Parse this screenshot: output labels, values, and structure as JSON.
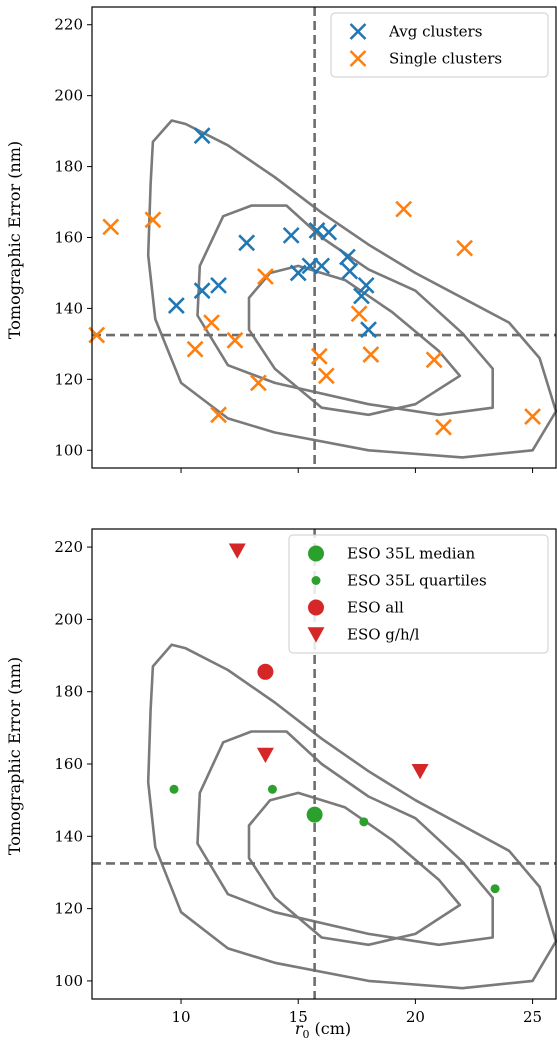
{
  "colors": {
    "avg": "#1f77b4",
    "single": "#ff7f0e",
    "eso_green": "#2ca02c",
    "eso_red": "#d62728",
    "contour": "#7a7a7a",
    "reference": "#6e6e6e"
  },
  "chart_data": [
    {
      "type": "scatter",
      "xlabel": "",
      "ylabel": "Tomographic Error (nm)",
      "xlim": [
        6.2,
        26.0
      ],
      "ylim": [
        95,
        225
      ],
      "yticks": [
        "100",
        "120",
        "140",
        "160",
        "180",
        "200",
        "220"
      ],
      "xticks": [],
      "reference_lines": {
        "x": 15.7,
        "y": 132.5,
        "style": "dashed"
      },
      "legend": {
        "placement": "top-right",
        "entries": [
          {
            "label": "Avg clusters",
            "marker": "x",
            "color": "#1f77b4"
          },
          {
            "label": "Single clusters",
            "marker": "x",
            "color": "#ff7f0e"
          }
        ]
      },
      "series": [
        {
          "name": "Avg clusters",
          "marker": "x",
          "color": "#1f77b4",
          "points": [
            {
              "x": 10.9,
              "y": 188.7
            },
            {
              "x": 12.8,
              "y": 158.5
            },
            {
              "x": 14.7,
              "y": 160.6
            },
            {
              "x": 15.8,
              "y": 162.0
            },
            {
              "x": 16.3,
              "y": 161.5
            },
            {
              "x": 16.0,
              "y": 152.0
            },
            {
              "x": 15.5,
              "y": 152.0
            },
            {
              "x": 15.0,
              "y": 150.0
            },
            {
              "x": 17.1,
              "y": 154.5
            },
            {
              "x": 17.2,
              "y": 150.5
            },
            {
              "x": 17.9,
              "y": 146.5
            },
            {
              "x": 17.7,
              "y": 143.5
            },
            {
              "x": 18.0,
              "y": 134.0
            },
            {
              "x": 11.6,
              "y": 146.5
            },
            {
              "x": 10.9,
              "y": 145.0
            },
            {
              "x": 9.8,
              "y": 140.8
            }
          ]
        },
        {
          "name": "Single clusters",
          "marker": "x",
          "color": "#ff7f0e",
          "points": [
            {
              "x": 7.0,
              "y": 163.0
            },
            {
              "x": 8.8,
              "y": 165.0
            },
            {
              "x": 6.4,
              "y": 132.5
            },
            {
              "x": 11.3,
              "y": 136.0
            },
            {
              "x": 10.6,
              "y": 128.5
            },
            {
              "x": 12.3,
              "y": 131.0
            },
            {
              "x": 13.6,
              "y": 149.0
            },
            {
              "x": 13.3,
              "y": 119.0
            },
            {
              "x": 11.6,
              "y": 110.0
            },
            {
              "x": 15.9,
              "y": 126.5
            },
            {
              "x": 16.2,
              "y": 121.0
            },
            {
              "x": 17.6,
              "y": 138.5
            },
            {
              "x": 18.1,
              "y": 127.0
            },
            {
              "x": 19.5,
              "y": 168.0
            },
            {
              "x": 20.8,
              "y": 125.5
            },
            {
              "x": 21.2,
              "y": 106.5
            },
            {
              "x": 22.1,
              "y": 157.0
            },
            {
              "x": 25.0,
              "y": 109.5
            }
          ]
        }
      ],
      "contours": [
        [
          [
            8.8,
            187
          ],
          [
            9.6,
            193
          ],
          [
            10.2,
            192
          ],
          [
            12,
            186
          ],
          [
            14,
            177
          ],
          [
            16,
            167
          ],
          [
            18,
            158
          ],
          [
            20,
            150
          ],
          [
            22,
            143
          ],
          [
            24,
            136
          ],
          [
            25.3,
            126
          ],
          [
            26,
            111
          ],
          [
            25,
            100
          ],
          [
            22,
            98
          ],
          [
            18,
            100
          ],
          [
            14,
            105
          ],
          [
            12,
            109
          ],
          [
            10,
            119
          ],
          [
            8.9,
            137
          ],
          [
            8.6,
            155
          ],
          [
            8.7,
            175
          ],
          [
            8.8,
            187
          ]
        ],
        [
          [
            10.8,
            152
          ],
          [
            11.8,
            166
          ],
          [
            13,
            169
          ],
          [
            14.5,
            169
          ],
          [
            16,
            160
          ],
          [
            18,
            151
          ],
          [
            20,
            145
          ],
          [
            22,
            133
          ],
          [
            23.3,
            123
          ],
          [
            23.3,
            112
          ],
          [
            21,
            110
          ],
          [
            18,
            113
          ],
          [
            14,
            119
          ],
          [
            12,
            124
          ],
          [
            10.7,
            138
          ],
          [
            10.8,
            152
          ]
        ],
        [
          [
            12.9,
            143
          ],
          [
            13.8,
            150
          ],
          [
            15,
            152
          ],
          [
            17,
            148
          ],
          [
            19,
            139
          ],
          [
            21,
            128
          ],
          [
            21.9,
            121
          ],
          [
            20,
            113
          ],
          [
            18,
            110
          ],
          [
            16,
            112
          ],
          [
            14,
            123
          ],
          [
            12.9,
            134
          ],
          [
            12.9,
            143
          ]
        ]
      ]
    },
    {
      "type": "scatter",
      "xlabel": "r0 (cm)",
      "ylabel": "Tomographic Error (nm)",
      "xlim": [
        6.2,
        26.0
      ],
      "ylim": [
        95,
        225
      ],
      "yticks": [
        "100",
        "120",
        "140",
        "160",
        "180",
        "200",
        "220"
      ],
      "xticks": [
        "10",
        "15",
        "20",
        "25"
      ],
      "reference_lines": {
        "x": 15.7,
        "y": 132.5,
        "style": "dashed"
      },
      "legend": {
        "placement": "top-right",
        "entries": [
          {
            "label": "ESO 35L median",
            "marker": "circle-large",
            "color": "#2ca02c"
          },
          {
            "label": "ESO 35L quartiles",
            "marker": "circle-small",
            "color": "#2ca02c"
          },
          {
            "label": "ESO all",
            "marker": "circle-large",
            "color": "#d62728"
          },
          {
            "label": "ESO g/h/l",
            "marker": "triangle-down",
            "color": "#d62728"
          }
        ]
      },
      "series": [
        {
          "name": "ESO 35L median",
          "marker": "circle-large",
          "color": "#2ca02c",
          "points": [
            {
              "x": 15.7,
              "y": 146.0
            }
          ]
        },
        {
          "name": "ESO 35L quartiles",
          "marker": "circle-small",
          "color": "#2ca02c",
          "points": [
            {
              "x": 9.7,
              "y": 153.0
            },
            {
              "x": 13.9,
              "y": 153.0
            },
            {
              "x": 17.8,
              "y": 144.0
            },
            {
              "x": 23.4,
              "y": 125.5
            }
          ]
        },
        {
          "name": "ESO all",
          "marker": "circle-large",
          "color": "#d62728",
          "points": [
            {
              "x": 13.6,
              "y": 185.5
            }
          ]
        },
        {
          "name": "ESO g/h/l",
          "marker": "triangle-down",
          "color": "#d62728",
          "points": [
            {
              "x": 12.4,
              "y": 219.0
            },
            {
              "x": 13.6,
              "y": 162.5
            },
            {
              "x": 20.2,
              "y": 158.0
            }
          ]
        }
      ],
      "contours": [
        [
          [
            8.8,
            187
          ],
          [
            9.6,
            193
          ],
          [
            10.2,
            192
          ],
          [
            12,
            186
          ],
          [
            14,
            177
          ],
          [
            16,
            167
          ],
          [
            18,
            158
          ],
          [
            20,
            150
          ],
          [
            22,
            143
          ],
          [
            24,
            136
          ],
          [
            25.3,
            126
          ],
          [
            26,
            111
          ],
          [
            25,
            100
          ],
          [
            22,
            98
          ],
          [
            18,
            100
          ],
          [
            14,
            105
          ],
          [
            12,
            109
          ],
          [
            10,
            119
          ],
          [
            8.9,
            137
          ],
          [
            8.6,
            155
          ],
          [
            8.7,
            175
          ],
          [
            8.8,
            187
          ]
        ],
        [
          [
            10.8,
            152
          ],
          [
            11.8,
            166
          ],
          [
            13,
            169
          ],
          [
            14.5,
            169
          ],
          [
            16,
            160
          ],
          [
            18,
            151
          ],
          [
            20,
            145
          ],
          [
            22,
            133
          ],
          [
            23.3,
            123
          ],
          [
            23.3,
            112
          ],
          [
            21,
            110
          ],
          [
            18,
            113
          ],
          [
            14,
            119
          ],
          [
            12,
            124
          ],
          [
            10.7,
            138
          ],
          [
            10.8,
            152
          ]
        ],
        [
          [
            12.9,
            143
          ],
          [
            13.8,
            150
          ],
          [
            15,
            152
          ],
          [
            17,
            148
          ],
          [
            19,
            139
          ],
          [
            21,
            128
          ],
          [
            21.9,
            121
          ],
          [
            20,
            113
          ],
          [
            18,
            110
          ],
          [
            16,
            112
          ],
          [
            14,
            123
          ],
          [
            12.9,
            134
          ],
          [
            12.9,
            143
          ]
        ]
      ]
    }
  ]
}
